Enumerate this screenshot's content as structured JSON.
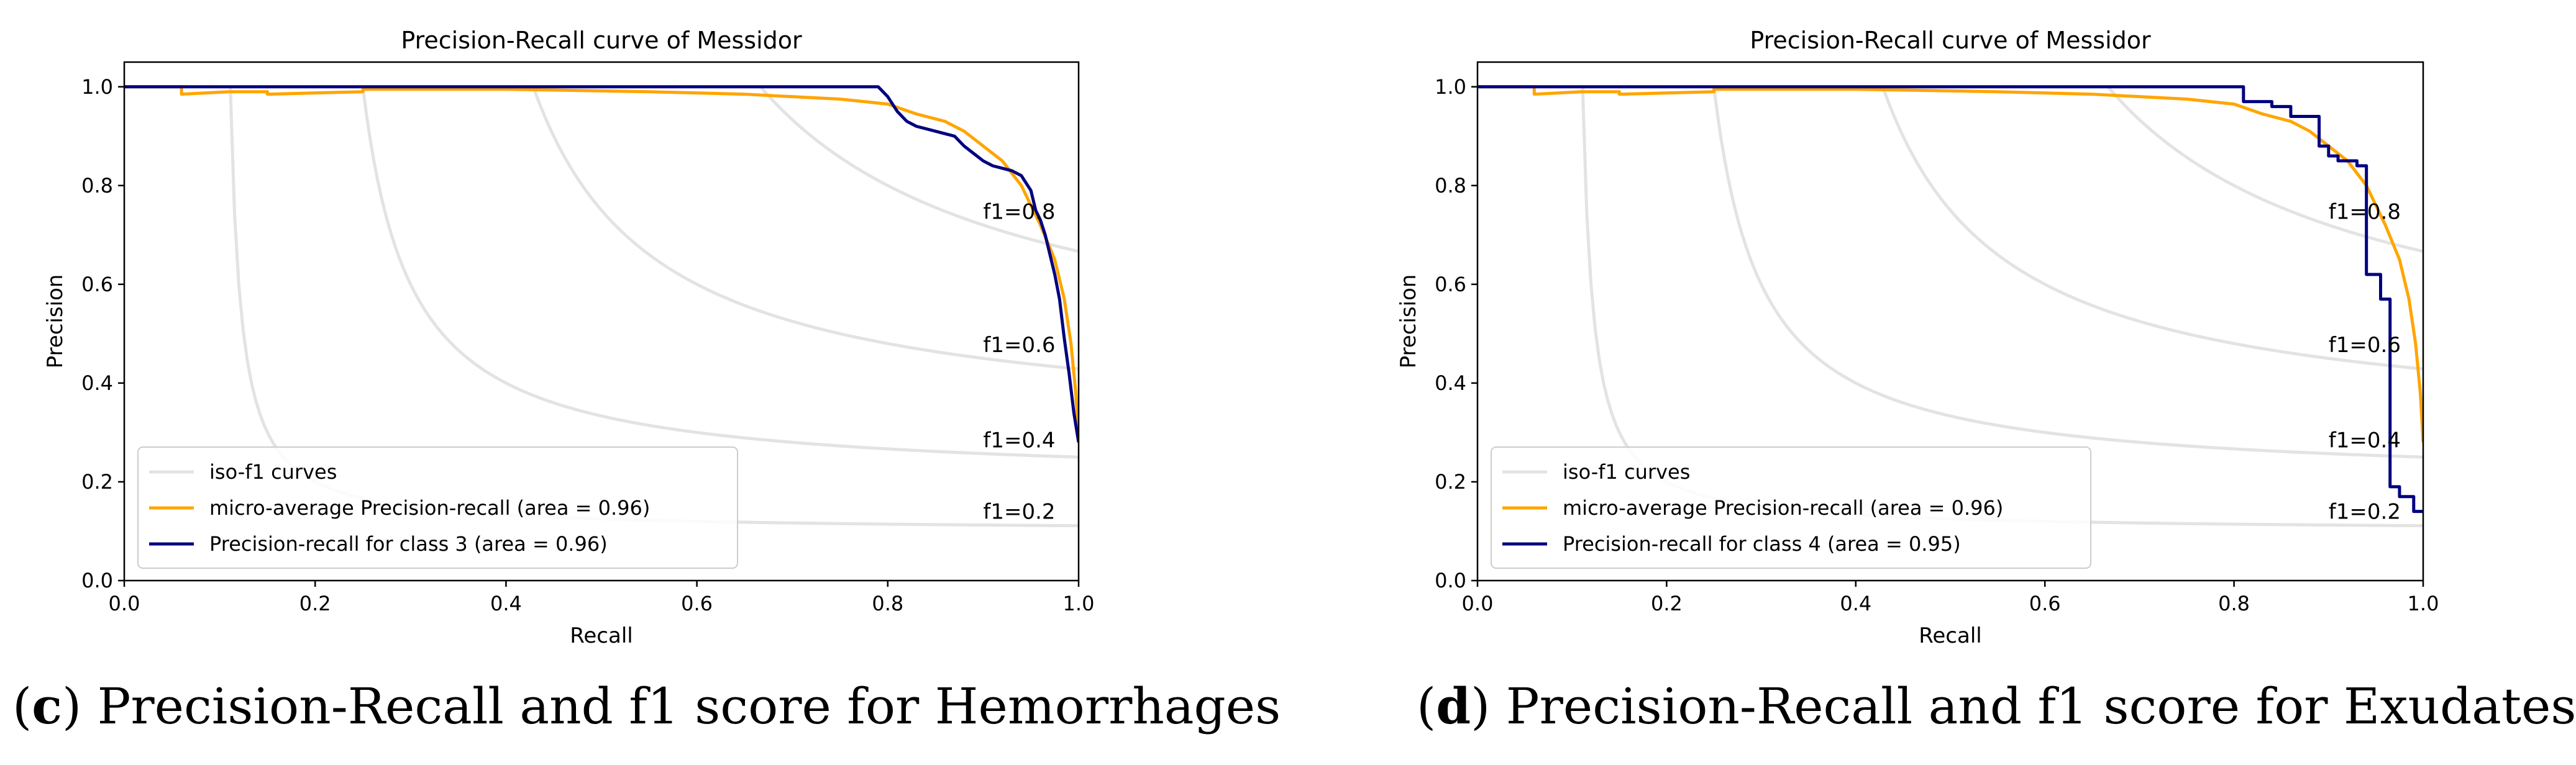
{
  "chart_data": [
    {
      "type": "line",
      "title": "Precision-Recall curve of Messidor",
      "xlabel": "Recall",
      "ylabel": "Precision",
      "xlim": [
        0.0,
        1.0
      ],
      "ylim": [
        0.0,
        1.05
      ],
      "xticks": [
        "0.0",
        "0.2",
        "0.4",
        "0.6",
        "0.8",
        "1.0"
      ],
      "yticks": [
        "0.0",
        "0.2",
        "0.4",
        "0.6",
        "0.8",
        "1.0"
      ],
      "iso_f1": [
        {
          "f": 0.2,
          "label": "f1=0.2"
        },
        {
          "f": 0.4,
          "label": "f1=0.4"
        },
        {
          "f": 0.6,
          "label": "f1=0.6"
        },
        {
          "f": 0.8,
          "label": "f1=0.8"
        }
      ],
      "legend": [
        "iso-f1 curves",
        "micro-average Precision-recall (area = 0.96)",
        "Precision-recall for class 3 (area = 0.96)"
      ],
      "legend_position": "lower-left",
      "colors": {
        "iso": "#e3e3e3",
        "micro": "#ffa500",
        "class": "#000080"
      },
      "series": [
        {
          "name": "micro-average Precision-recall (area = 0.96)",
          "x": [
            0.0,
            0.06,
            0.06,
            0.11,
            0.15,
            0.15,
            0.25,
            0.25,
            0.4,
            0.55,
            0.65,
            0.7,
            0.75,
            0.8,
            0.83,
            0.86,
            0.88,
            0.9,
            0.92,
            0.94,
            0.96,
            0.975,
            0.985,
            0.992,
            0.997,
            1.0
          ],
          "y": [
            1.0,
            1.0,
            0.985,
            0.99,
            0.99,
            0.985,
            0.99,
            0.995,
            0.995,
            0.99,
            0.985,
            0.98,
            0.975,
            0.965,
            0.945,
            0.93,
            0.91,
            0.88,
            0.85,
            0.8,
            0.72,
            0.65,
            0.57,
            0.48,
            0.38,
            0.28
          ]
        },
        {
          "name": "Precision-recall for class 3 (area = 0.96)",
          "x": [
            0.0,
            0.79,
            0.8,
            0.81,
            0.82,
            0.83,
            0.85,
            0.87,
            0.88,
            0.89,
            0.9,
            0.91,
            0.93,
            0.94,
            0.95,
            0.955,
            0.96,
            0.965,
            0.97,
            0.975,
            0.98,
            0.985,
            0.99,
            0.995,
            1.0
          ],
          "y": [
            1.0,
            1.0,
            0.98,
            0.95,
            0.93,
            0.92,
            0.91,
            0.9,
            0.88,
            0.865,
            0.85,
            0.84,
            0.83,
            0.82,
            0.79,
            0.75,
            0.73,
            0.7,
            0.66,
            0.62,
            0.57,
            0.49,
            0.42,
            0.34,
            0.28
          ]
        }
      ],
      "caption": {
        "letter": "c",
        "text": "Precision-Recall and f1 score for Hemorrhages"
      }
    },
    {
      "type": "line",
      "title": "Precision-Recall curve of Messidor",
      "xlabel": "Recall",
      "ylabel": "Precision",
      "xlim": [
        0.0,
        1.0
      ],
      "ylim": [
        0.0,
        1.05
      ],
      "xticks": [
        "0.0",
        "0.2",
        "0.4",
        "0.6",
        "0.8",
        "1.0"
      ],
      "yticks": [
        "0.0",
        "0.2",
        "0.4",
        "0.6",
        "0.8",
        "1.0"
      ],
      "iso_f1": [
        {
          "f": 0.2,
          "label": "f1=0.2"
        },
        {
          "f": 0.4,
          "label": "f1=0.4"
        },
        {
          "f": 0.6,
          "label": "f1=0.6"
        },
        {
          "f": 0.8,
          "label": "f1=0.8"
        }
      ],
      "legend": [
        "iso-f1 curves",
        "micro-average Precision-recall (area = 0.96)",
        "Precision-recall for class 4 (area = 0.95)"
      ],
      "legend_position": "lower-left",
      "colors": {
        "iso": "#e3e3e3",
        "micro": "#ffa500",
        "class": "#000080"
      },
      "series": [
        {
          "name": "micro-average Precision-recall (area = 0.96)",
          "x": [
            0.0,
            0.06,
            0.06,
            0.11,
            0.15,
            0.15,
            0.25,
            0.25,
            0.4,
            0.55,
            0.65,
            0.7,
            0.75,
            0.8,
            0.83,
            0.86,
            0.88,
            0.9,
            0.92,
            0.94,
            0.96,
            0.975,
            0.985,
            0.992,
            0.997,
            1.0
          ],
          "y": [
            1.0,
            1.0,
            0.985,
            0.99,
            0.99,
            0.985,
            0.99,
            0.995,
            0.995,
            0.99,
            0.985,
            0.98,
            0.975,
            0.965,
            0.945,
            0.93,
            0.91,
            0.88,
            0.85,
            0.8,
            0.72,
            0.65,
            0.57,
            0.48,
            0.38,
            0.28
          ]
        },
        {
          "name": "Precision-recall for class 4 (area = 0.95)",
          "x": [
            0.0,
            0.81,
            0.81,
            0.84,
            0.84,
            0.86,
            0.86,
            0.89,
            0.89,
            0.9,
            0.9,
            0.91,
            0.91,
            0.93,
            0.93,
            0.94,
            0.94,
            0.955,
            0.955,
            0.965,
            0.965,
            0.975,
            0.975,
            0.99,
            0.99,
            1.0
          ],
          "y": [
            1.0,
            1.0,
            0.97,
            0.97,
            0.96,
            0.96,
            0.94,
            0.94,
            0.88,
            0.88,
            0.86,
            0.86,
            0.85,
            0.85,
            0.84,
            0.84,
            0.62,
            0.62,
            0.57,
            0.57,
            0.19,
            0.19,
            0.17,
            0.17,
            0.14,
            0.14
          ]
        }
      ],
      "caption": {
        "letter": "d",
        "text": "Precision-Recall and f1 score for Exudates"
      }
    }
  ]
}
